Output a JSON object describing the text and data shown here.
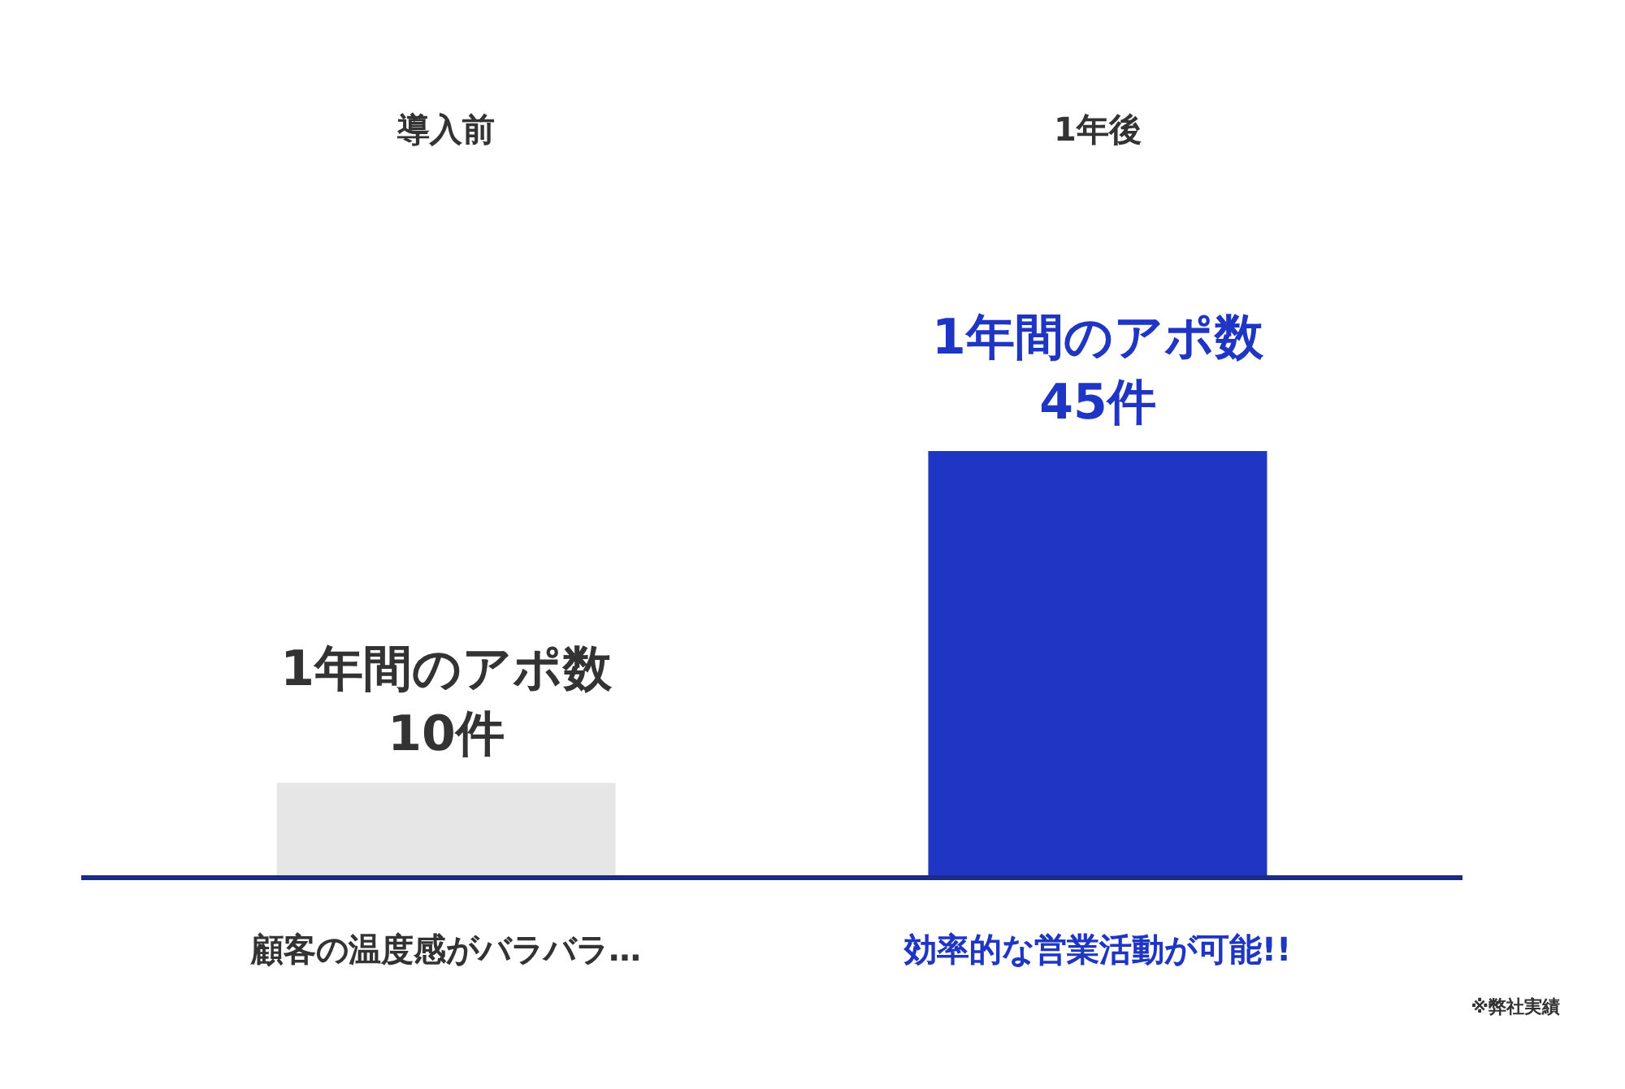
{
  "chart_data": {
    "type": "bar",
    "categories": [
      "導入前",
      "1年後"
    ],
    "values": [
      10,
      45
    ],
    "colors": [
      "#e6e6e6",
      "#1f35c4"
    ],
    "value_labels": [
      "1年間のアポ数\n10件",
      "1年間のアポ数\n45件"
    ],
    "annotations": [
      "顧客の温度感がバラバラ…",
      "効率的な営業活動が可能!!",
      "※弊社実績"
    ],
    "grid": false
  }
}
